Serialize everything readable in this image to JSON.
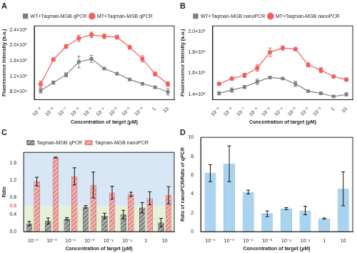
{
  "chart_data": [
    {
      "panel": "A",
      "type": "line",
      "x_label": "Concentration of target (μM)",
      "y_label": "Fluorescence Intensity (a.u.)",
      "categories": [
        "10⁻⁹",
        "10⁻⁸",
        "10⁻⁷",
        "10⁻⁶",
        "10⁻⁵",
        "10⁻⁴",
        "10⁻³",
        "10⁻²",
        "10⁻¹",
        "1",
        "10"
      ],
      "series": [
        {
          "name": "WT+Taqman-MGB qPCR",
          "color": "#7f7f7f",
          "marker": "square",
          "values": [
            83000,
            104000,
            124000,
            157000,
            165000,
            140000,
            127000,
            112000,
            101000,
            92000,
            80000
          ],
          "errors": [
            6000,
            4000,
            5000,
            15000,
            9000,
            2000,
            3000,
            3000,
            3000,
            3000,
            8000
          ]
        },
        {
          "name": "MT+Taqman-MGB qPCR",
          "color": "#f0605d",
          "marker": "circle",
          "values": [
            100000,
            163000,
            197000,
            218000,
            227000,
            223000,
            221000,
            195000,
            165000,
            126000,
            100000
          ],
          "errors": [
            8000,
            3000,
            5000,
            8000,
            7000,
            6000,
            5000,
            5000,
            8000,
            5000,
            6000
          ]
        }
      ],
      "ylim": [
        60000,
        250000
      ],
      "yticks": [
        {
          "value": 80000,
          "label": "8.0×10⁴"
        },
        {
          "value": 120000,
          "label": "1.2×10⁵"
        },
        {
          "value": 160000,
          "label": "1.6×10⁵"
        },
        {
          "value": 200000,
          "label": "2.0×10⁵"
        },
        {
          "value": 240000,
          "label": "2.4×10⁵"
        }
      ],
      "legend": "top",
      "grid": false
    },
    {
      "panel": "B",
      "type": "line",
      "x_label": "Concentration of target (μM)",
      "y_label": "Fluorescence Intensity (a.u.)",
      "categories": [
        "10⁻⁹",
        "10⁻⁸",
        "10⁻⁷",
        "10⁻⁶",
        "10⁻⁵",
        "10⁻⁴",
        "10⁻³",
        "10⁻²",
        "10⁻¹",
        "1",
        "10"
      ],
      "series": [
        {
          "name": "WT+Taqman-MGB nanoPCR",
          "color": "#7f7f7f",
          "marker": "square",
          "values": [
            141000,
            144000,
            147000,
            152000,
            156000,
            155000,
            150000,
            143000,
            141000,
            138000,
            140000
          ],
          "errors": [
            1500,
            2000,
            1500,
            2500,
            1000,
            1000,
            2500,
            1000,
            1000,
            500,
            1500
          ]
        },
        {
          "name": "MT+Taqman-MGB nanoPCR",
          "color": "#f0605d",
          "marker": "circle",
          "values": [
            150000,
            155000,
            158000,
            165000,
            180000,
            184000,
            183000,
            168000,
            163000,
            157000,
            154000
          ],
          "errors": [
            1000,
            1500,
            2000,
            3000,
            4000,
            2000,
            1000,
            2000,
            2500,
            1000,
            1000
          ]
        }
      ],
      "ylim": [
        135000,
        205000
      ],
      "yticks": [
        {
          "value": 140000,
          "label": "1.4×10⁵"
        },
        {
          "value": 160000,
          "label": "1.6×10⁵"
        },
        {
          "value": 180000,
          "label": "1.8×10⁵"
        },
        {
          "value": 200000,
          "label": "2.0×10⁵"
        }
      ],
      "legend": "top",
      "grid": false
    },
    {
      "panel": "C",
      "type": "bar",
      "x_label": "Concentration of target (μM)",
      "y_label": "Rdis",
      "categories": [
        "10⁻⁹",
        "10⁻⁸",
        "10⁻⁶",
        "10⁻⁵",
        "10⁻³",
        "10⁻²",
        "1",
        "10"
      ],
      "series": [
        {
          "name": "Taqman-MGB qPCR",
          "color": "#404040",
          "values": [
            0.19,
            0.25,
            0.3,
            0.58,
            0.37,
            0.4,
            0.56,
            0.21
          ],
          "errors": [
            0.05,
            0.07,
            0.03,
            0.03,
            0.06,
            0.1,
            0.12,
            0.1
          ]
        },
        {
          "name": "Taqman-MGB nanoPCR",
          "color": "#d9534f",
          "values": [
            1.17,
            1.73,
            1.29,
            1.09,
            0.91,
            0.87,
            0.78,
            0.85
          ],
          "errors": [
            0.1,
            0.01,
            0.2,
            0.3,
            0.15,
            0.05,
            0.15,
            0.2
          ]
        }
      ],
      "threshold": 0.6,
      "ylim": [
        0,
        1.85
      ],
      "yticks": [
        {
          "value": 0,
          "label": "0.0"
        },
        0.4,
        0.6,
        0.8,
        1.2,
        1.6
      ],
      "legend": "top",
      "grid": false
    },
    {
      "panel": "D",
      "type": "bar",
      "x_label": "Concentration of target (μM)",
      "y_label": "Rdis of nanoPCR/Rdis of qPCR",
      "categories": [
        "10⁻⁹",
        "10⁻⁸",
        "10⁻⁶",
        "10⁻⁵",
        "10⁻³",
        "10⁻²",
        "1",
        "10"
      ],
      "series": [
        {
          "name": "Rdis of nanoPCR/Rdis of qPCR",
          "color": "#a9d3ef",
          "values": [
            6.2,
            7.2,
            4.2,
            1.9,
            2.45,
            2.25,
            1.4,
            4.55
          ],
          "errors": [
            0.9,
            1.9,
            0.2,
            0.3,
            0.1,
            0.45,
            0.05,
            1.8
          ]
        }
      ],
      "ylim": [
        0,
        10
      ],
      "yticks": [
        0,
        2,
        4,
        6,
        8,
        10
      ],
      "grid": false
    }
  ]
}
